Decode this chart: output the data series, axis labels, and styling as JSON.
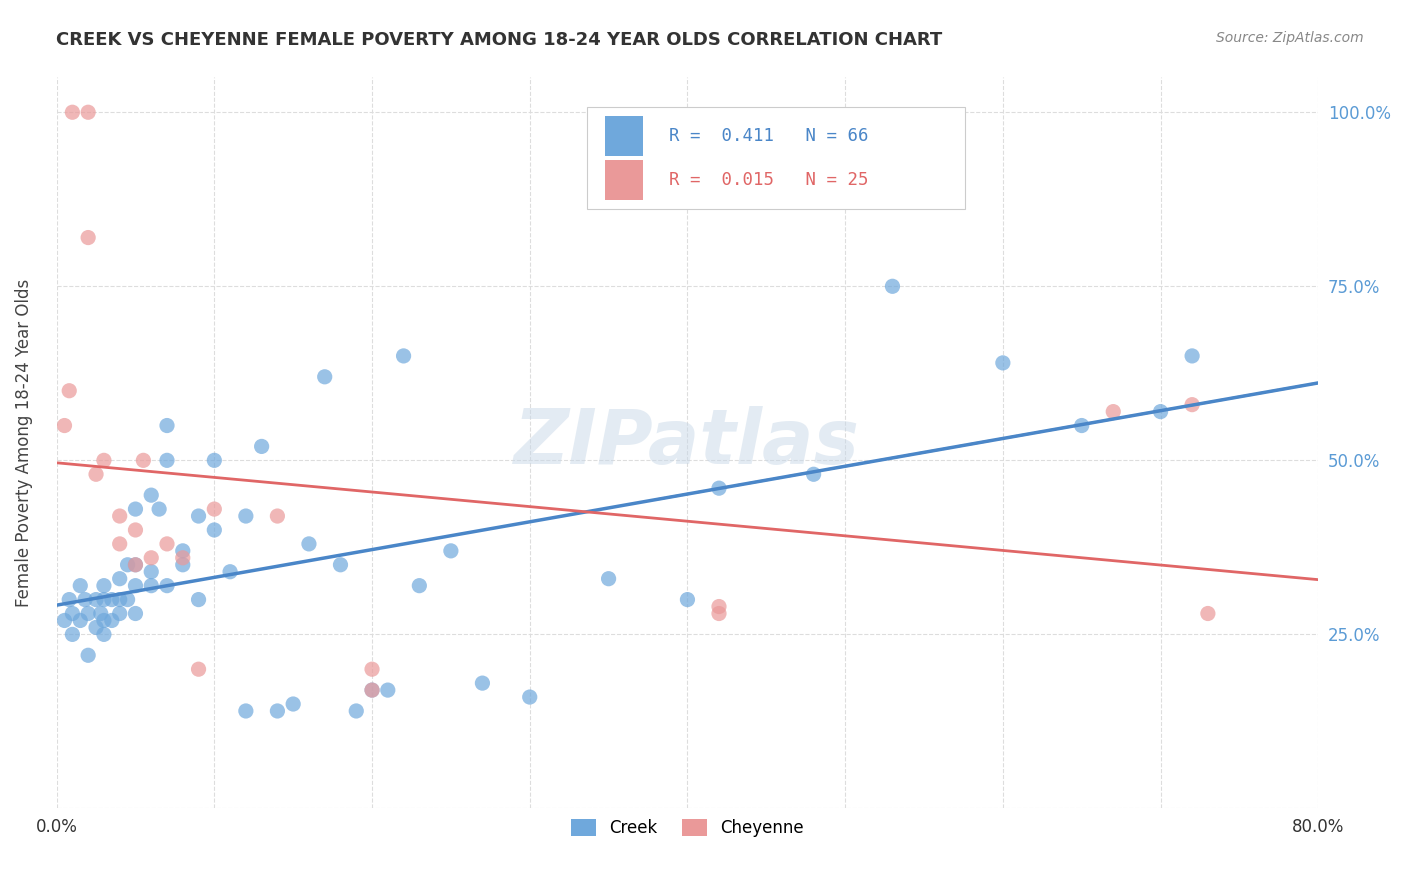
{
  "title": "CREEK VS CHEYENNE FEMALE POVERTY AMONG 18-24 YEAR OLDS CORRELATION CHART",
  "source": "Source: ZipAtlas.com",
  "ylabel": "Female Poverty Among 18-24 Year Olds",
  "x_min": 0.0,
  "x_max": 0.8,
  "y_min": 0.0,
  "y_max": 1.05,
  "creek_color": "#6fa8dc",
  "cheyenne_color": "#ea9999",
  "creek_line_color": "#4a86c8",
  "cheyenne_line_color": "#e06666",
  "trend_line_color": "#aaaaaa",
  "creek_R": 0.411,
  "creek_N": 66,
  "cheyenne_R": 0.015,
  "cheyenne_N": 25,
  "watermark": "ZIPatlas",
  "background_color": "#ffffff",
  "grid_color": "#dddddd",
  "creek_x": [
    0.005,
    0.008,
    0.01,
    0.01,
    0.015,
    0.015,
    0.018,
    0.02,
    0.02,
    0.025,
    0.025,
    0.028,
    0.03,
    0.03,
    0.03,
    0.03,
    0.035,
    0.035,
    0.04,
    0.04,
    0.04,
    0.045,
    0.045,
    0.05,
    0.05,
    0.05,
    0.05,
    0.06,
    0.06,
    0.06,
    0.065,
    0.07,
    0.07,
    0.07,
    0.08,
    0.08,
    0.09,
    0.09,
    0.1,
    0.1,
    0.11,
    0.12,
    0.12,
    0.13,
    0.14,
    0.15,
    0.16,
    0.17,
    0.18,
    0.19,
    0.2,
    0.21,
    0.22,
    0.23,
    0.25,
    0.27,
    0.3,
    0.35,
    0.4,
    0.42,
    0.48,
    0.53,
    0.6,
    0.65,
    0.7,
    0.72
  ],
  "creek_y": [
    0.27,
    0.3,
    0.28,
    0.25,
    0.27,
    0.32,
    0.3,
    0.28,
    0.22,
    0.3,
    0.26,
    0.28,
    0.32,
    0.27,
    0.25,
    0.3,
    0.3,
    0.27,
    0.33,
    0.28,
    0.3,
    0.35,
    0.3,
    0.43,
    0.32,
    0.28,
    0.35,
    0.45,
    0.34,
    0.32,
    0.43,
    0.55,
    0.5,
    0.32,
    0.37,
    0.35,
    0.3,
    0.42,
    0.4,
    0.5,
    0.34,
    0.14,
    0.42,
    0.52,
    0.14,
    0.15,
    0.38,
    0.62,
    0.35,
    0.14,
    0.17,
    0.17,
    0.65,
    0.32,
    0.37,
    0.18,
    0.16,
    0.33,
    0.3,
    0.46,
    0.48,
    0.75,
    0.64,
    0.55,
    0.57,
    0.65
  ],
  "cheyenne_x": [
    0.005,
    0.008,
    0.01,
    0.02,
    0.02,
    0.025,
    0.03,
    0.04,
    0.04,
    0.05,
    0.05,
    0.055,
    0.06,
    0.07,
    0.08,
    0.09,
    0.1,
    0.14,
    0.2,
    0.2,
    0.42,
    0.42,
    0.67,
    0.72,
    0.73
  ],
  "cheyenne_y": [
    0.55,
    0.6,
    1.0,
    1.0,
    0.82,
    0.48,
    0.5,
    0.38,
    0.42,
    0.35,
    0.4,
    0.5,
    0.36,
    0.38,
    0.36,
    0.2,
    0.43,
    0.42,
    0.2,
    0.17,
    0.28,
    0.29,
    0.57,
    0.58,
    0.28
  ]
}
